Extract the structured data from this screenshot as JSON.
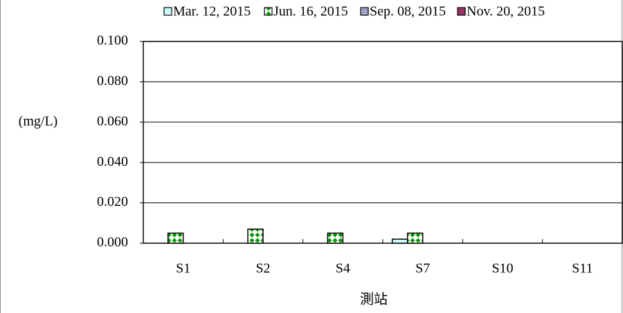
{
  "chart_data": {
    "type": "bar",
    "y_label": "(mg/L)",
    "x_label": "測站",
    "categories": [
      "S1",
      "S2",
      "S4",
      "S7",
      "S10",
      "S11"
    ],
    "series": [
      {
        "name": "Mar. 12, 2015",
        "color": "#ccffff",
        "values": [
          null,
          null,
          null,
          0.002,
          null,
          null
        ]
      },
      {
        "name": "Jun. 16, 2015",
        "color": "#009900",
        "values": [
          0.005,
          0.007,
          0.005,
          0.005,
          null,
          null
        ]
      },
      {
        "name": "Sep. 08, 2015",
        "color": "#ccccff",
        "values": [
          null,
          null,
          null,
          null,
          null,
          null
        ]
      },
      {
        "name": "Nov. 20, 2015",
        "color": "#993366",
        "values": [
          null,
          null,
          null,
          null,
          null,
          null
        ]
      }
    ],
    "ylim": [
      0,
      0.1
    ],
    "yticks": [
      {
        "value": 0,
        "label": "0.000"
      },
      {
        "value": 0.02,
        "label": "0.020"
      },
      {
        "value": 0.04,
        "label": "0.040"
      },
      {
        "value": 0.06,
        "label": "0.060"
      },
      {
        "value": 0.08,
        "label": "0.080"
      },
      {
        "value": 0.1,
        "label": "0.100"
      }
    ],
    "grid": true,
    "legend": "top"
  }
}
